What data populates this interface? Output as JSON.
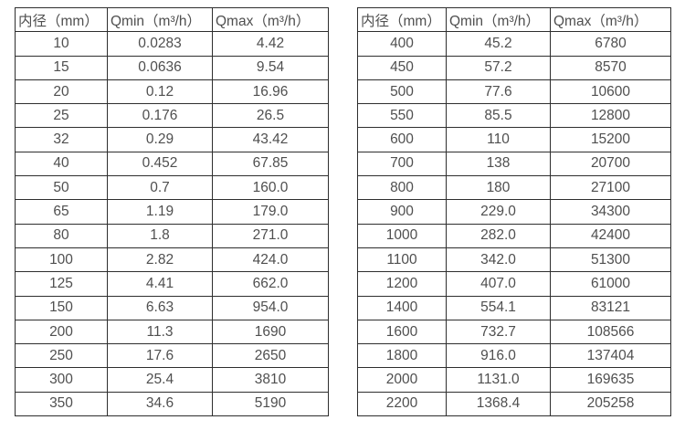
{
  "tables": [
    {
      "name": "flow-table-small-diameters",
      "headers": [
        "内径（mm）",
        "Qmin（m³/h）",
        "Qmax（m³/h）"
      ],
      "rows": [
        [
          "10",
          "0.0283",
          "4.42"
        ],
        [
          "15",
          "0.0636",
          "9.54"
        ],
        [
          "20",
          "0.12",
          "16.96"
        ],
        [
          "25",
          "0.176",
          "26.5"
        ],
        [
          "32",
          "0.29",
          "43.42"
        ],
        [
          "40",
          "0.452",
          "67.85"
        ],
        [
          "50",
          "0.7",
          "160.0"
        ],
        [
          "65",
          "1.19",
          "179.0"
        ],
        [
          "80",
          "1.8",
          "271.0"
        ],
        [
          "100",
          "2.82",
          "424.0"
        ],
        [
          "125",
          "4.41",
          "662.0"
        ],
        [
          "150",
          "6.63",
          "954.0"
        ],
        [
          "200",
          "11.3",
          "1690"
        ],
        [
          "250",
          "17.6",
          "2650"
        ],
        [
          "300",
          "25.4",
          "3810"
        ],
        [
          "350",
          "34.6",
          "5190"
        ]
      ]
    },
    {
      "name": "flow-table-large-diameters",
      "headers": [
        "内径（mm）",
        "Qmin（m³/h）",
        "Qmax（m³/h）"
      ],
      "rows": [
        [
          "400",
          "45.2",
          "6780"
        ],
        [
          "450",
          "57.2",
          "8570"
        ],
        [
          "500",
          "77.6",
          "10600"
        ],
        [
          "550",
          "85.5",
          "12800"
        ],
        [
          "600",
          "110",
          "15200"
        ],
        [
          "700",
          "138",
          "20700"
        ],
        [
          "800",
          "180",
          "27100"
        ],
        [
          "900",
          "229.0",
          "34300"
        ],
        [
          "1000",
          "282.0",
          "42400"
        ],
        [
          "1100",
          "342.0",
          "51300"
        ],
        [
          "1200",
          "407.0",
          "61000"
        ],
        [
          "1400",
          "554.1",
          "83121"
        ],
        [
          "1600",
          "732.7",
          "108566"
        ],
        [
          "1800",
          "916.0",
          "137404"
        ],
        [
          "2000",
          "1131.0",
          "169635"
        ],
        [
          "2200",
          "1368.4",
          "205258"
        ]
      ]
    }
  ],
  "colors": {
    "border": "#2e2e2e",
    "text": "#4f4f4f",
    "background": "#ffffff"
  }
}
